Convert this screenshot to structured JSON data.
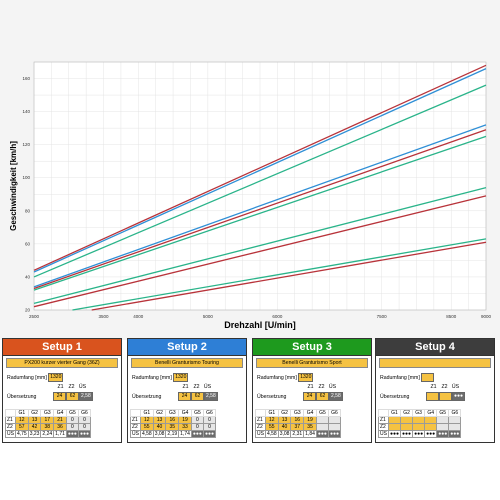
{
  "chart_data": {
    "type": "line",
    "xlabel": "Drehzahl [U/min]",
    "ylabel": "Geschwindigkeit [km/h]",
    "xlim": [
      2500,
      9000
    ],
    "ylim": [
      20,
      170
    ],
    "x_ticks": [
      2500,
      3500,
      4000,
      5000,
      6000,
      7500,
      8500,
      9000
    ],
    "y_ticks": [
      20,
      40,
      60,
      80,
      100,
      120,
      140,
      160
    ],
    "grid": true,
    "series": [
      {
        "color": "#2f8fd6",
        "x": [
          2500,
          9000
        ],
        "y": [
          43,
          166
        ]
      },
      {
        "color": "#b8333a",
        "x": [
          2500,
          9000
        ],
        "y": [
          44,
          168
        ]
      },
      {
        "color": "#2ab48a",
        "x": [
          2500,
          9000
        ],
        "y": [
          40,
          156
        ]
      },
      {
        "color": "#2f8fd6",
        "x": [
          2500,
          9000
        ],
        "y": [
          34,
          132
        ]
      },
      {
        "color": "#b8333a",
        "x": [
          2500,
          9000
        ],
        "y": [
          33,
          129
        ]
      },
      {
        "color": "#2ab48a",
        "x": [
          2500,
          9000
        ],
        "y": [
          32,
          125
        ]
      },
      {
        "color": "#2ab48a",
        "x": [
          2500,
          9000
        ],
        "y": [
          24,
          94
        ]
      },
      {
        "color": "#b8333a",
        "x": [
          2500,
          9000
        ],
        "y": [
          22,
          89
        ]
      },
      {
        "color": "#2ab48a",
        "x": [
          2500,
          9000
        ],
        "y": [
          16,
          63
        ]
      },
      {
        "color": "#b8333a",
        "x": [
          2500,
          9000
        ],
        "y": [
          14,
          61
        ]
      }
    ]
  },
  "labels": {
    "radumfang": "Radumfang [mm]",
    "uebersetzung": "Übersetzung",
    "z1": "Z1",
    "z2": "Z2",
    "us": "ÜS",
    "g_headers": [
      "G1",
      "G2",
      "G3",
      "G4",
      "G5",
      "G6"
    ]
  },
  "setups": [
    {
      "title": "Setup 1",
      "color": "#d9531e",
      "name": "PX200 kurzer vierter Gang (36Z)",
      "radumfang": "1320",
      "z1": "24",
      "z2": "62",
      "us": "2,58",
      "gears_z1": [
        "12",
        "13",
        "17",
        "21",
        "0",
        "0"
      ],
      "gears_z2": [
        "57",
        "42",
        "38",
        "36",
        "0",
        "0"
      ],
      "gears_us": [
        "4,75",
        "3,23",
        "2,24",
        "1,71",
        "●●●",
        "●●●"
      ]
    },
    {
      "title": "Setup 2",
      "color": "#2e7fd6",
      "name": "Benelli Granturismo Touring",
      "radumfang": "1320",
      "z1": "24",
      "z2": "62",
      "us": "2,58",
      "gears_z1": [
        "12",
        "13",
        "16",
        "19",
        "0",
        "0"
      ],
      "gears_z2": [
        "55",
        "40",
        "35",
        "33",
        "0",
        "0"
      ],
      "gears_us": [
        "4,58",
        "3,08",
        "2,19",
        "1,74",
        "●●●",
        "●●●"
      ]
    },
    {
      "title": "Setup 3",
      "color": "#1e9a1e",
      "name": "Benelli Granturismo Sport",
      "radumfang": "1320",
      "z1": "24",
      "z2": "62",
      "us": "2,58",
      "gears_z1": [
        "12",
        "13",
        "16",
        "19",
        "",
        ""
      ],
      "gears_z2": [
        "55",
        "40",
        "37",
        "35",
        "",
        ""
      ],
      "gears_us": [
        "4,58",
        "3,08",
        "2,31",
        "1,84",
        "●●●",
        "●●●"
      ]
    },
    {
      "title": "Setup 4",
      "color": "#3d3d3d",
      "name": "",
      "radumfang": "",
      "z1": "",
      "z2": "",
      "us": "●●●",
      "gears_z1": [
        "",
        "",
        "",
        "",
        "",
        ""
      ],
      "gears_z2": [
        "",
        "",
        "",
        "",
        "",
        ""
      ],
      "gears_us": [
        "●●●",
        "●●●",
        "●●●",
        "●●●",
        "●●●",
        "●●●"
      ]
    }
  ]
}
